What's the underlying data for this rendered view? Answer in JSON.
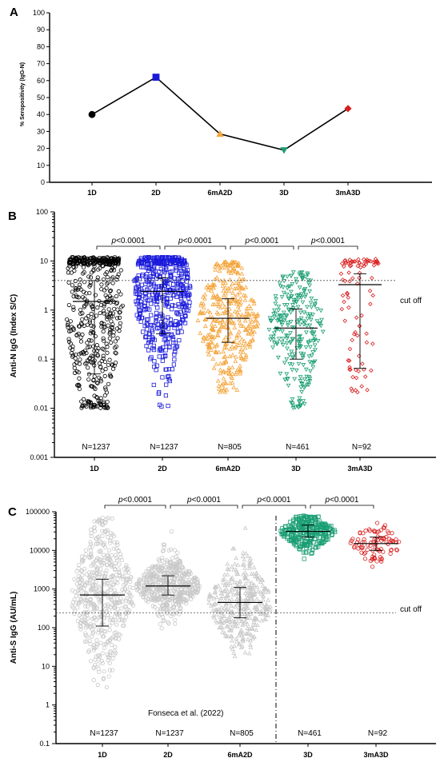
{
  "chart_data": [
    {
      "panel_label": "A",
      "type": "line",
      "ylabel": "% Seropositivity (IgG-N)",
      "xlabel": "",
      "ylim": [
        0,
        100
      ],
      "yticks": [
        "0",
        "10",
        "20",
        "30",
        "40",
        "50",
        "60",
        "70",
        "80",
        "90",
        "100"
      ],
      "categories": [
        "1D",
        "2D",
        "6mA2D",
        "3D",
        "3mA3D"
      ],
      "values": [
        40,
        62,
        28.5,
        19,
        43.5
      ],
      "marker_colors": [
        "#000000",
        "#1a1adb",
        "#f5a43a",
        "#1a9e73",
        "#d91e1e"
      ],
      "marker_shapes": [
        "circle",
        "square",
        "triangle-up",
        "triangle-down",
        "diamond"
      ]
    },
    {
      "panel_label": "B",
      "type": "scatter",
      "scale": "log",
      "ylabel": "Anti-N IgG (Index S/C)",
      "ylim": [
        0.001,
        100
      ],
      "yticks": [
        "0.001",
        "0.01",
        "0.1",
        "1",
        "10",
        "100"
      ],
      "categories": [
        "1D",
        "2D",
        "6mA2D",
        "3D",
        "3mA3D"
      ],
      "medians": [
        1.5,
        2.4,
        0.68,
        0.43,
        3.3
      ],
      "iqr": [
        [
          0.05,
          4.0
        ],
        [
          0.33,
          4.5
        ],
        [
          0.22,
          1.7
        ],
        [
          0.1,
          1.05
        ],
        [
          0.065,
          5.5
        ]
      ],
      "ranges": [
        [
          0.01,
          12
        ],
        [
          0.01,
          12
        ],
        [
          0.02,
          10
        ],
        [
          0.01,
          6
        ],
        [
          0.02,
          11
        ]
      ],
      "n_labels": [
        "N=1237",
        "N=1237",
        "N=805",
        "N=461",
        "N=92"
      ],
      "colors": [
        "#000000",
        "#1a1adb",
        "#f5a43a",
        "#1a9e73",
        "#d91e1e"
      ],
      "cutoff": 4.0,
      "cutoff_label": "cut off",
      "comparisons": [
        {
          "from": 0,
          "to": 1,
          "label": "p<0.0001"
        },
        {
          "from": 1,
          "to": 2,
          "label": "p<0.0001"
        },
        {
          "from": 2,
          "to": 3,
          "label": "p<0.0001"
        },
        {
          "from": 3,
          "to": 4,
          "label": "p<0.0001"
        }
      ]
    },
    {
      "panel_label": "C",
      "type": "scatter",
      "scale": "log",
      "ylabel": "Anti-S IgG (AU/mL)",
      "ylim": [
        0.1,
        100000
      ],
      "yticks": [
        "0.1",
        "1",
        "10",
        "100",
        "1000",
        "10000",
        "100000"
      ],
      "categories": [
        "1D",
        "2D",
        "6mA2D",
        "3D",
        "3mA3D"
      ],
      "medians": [
        700,
        1200,
        450,
        31000,
        15000
      ],
      "iqr": [
        [
          110,
          1800
        ],
        [
          700,
          2200
        ],
        [
          180,
          1100
        ],
        [
          22000,
          45000
        ],
        [
          10000,
          22000
        ]
      ],
      "ranges": [
        [
          0.5,
          70000
        ],
        [
          13,
          80000
        ],
        [
          17,
          70000
        ],
        [
          4000,
          80000
        ],
        [
          2200,
          70000
        ]
      ],
      "n_labels": [
        "N=1237",
        "N=1237",
        "N=805",
        "N=461",
        "N=92"
      ],
      "colors": [
        "#c8c8c8",
        "#c8c8c8",
        "#c8c8c8",
        "#1a9e73",
        "#d91e1e"
      ],
      "cutoff": 240,
      "cutoff_label": "cut off",
      "note": "Fonseca et al. (2022)",
      "comparisons": [
        {
          "from": 0,
          "to": 1,
          "label": "p<0.0001"
        },
        {
          "from": 1,
          "to": 2,
          "label": "p<0.0001"
        },
        {
          "from": 2,
          "to": 3,
          "label": "p<0.0001"
        },
        {
          "from": 3,
          "to": 4,
          "label": "p<0.0001"
        }
      ]
    }
  ]
}
